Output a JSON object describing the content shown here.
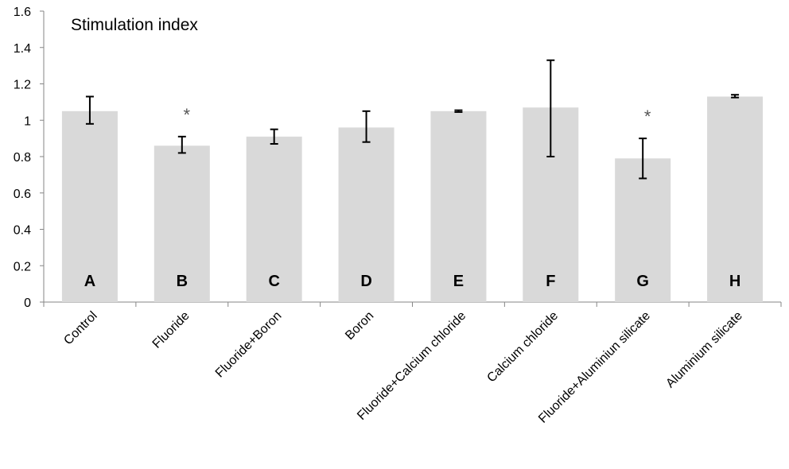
{
  "chart_data": {
    "type": "bar",
    "title": "Stimulation index",
    "xlabel": "",
    "ylabel": "",
    "ylim": [
      0,
      1.6
    ],
    "yticks": [
      "0",
      "0.2",
      "0.4",
      "0.6",
      "0.8",
      "1",
      "1.2",
      "1.4",
      "1.6"
    ],
    "grid": false,
    "legend": "none",
    "bar_color": "#d9d9d9",
    "categories": [
      "Control",
      "Fluoride",
      "Fluoride+Boron",
      "Boron",
      "Fluoride+Calcium chloride",
      "Calcium chloride",
      "Fluoride+Aluminiun silicate",
      "Aluminium silicate"
    ],
    "letters": [
      "A",
      "B",
      "C",
      "D",
      "E",
      "F",
      "G",
      "H"
    ],
    "values": [
      1.05,
      0.86,
      0.91,
      0.96,
      1.05,
      1.07,
      0.79,
      1.13
    ],
    "error_low": [
      0.98,
      0.82,
      0.87,
      0.88,
      1.045,
      0.8,
      0.68,
      1.125
    ],
    "error_high": [
      1.13,
      0.91,
      0.95,
      1.05,
      1.055,
      1.33,
      0.9,
      1.14
    ],
    "significance": [
      "",
      "*",
      "",
      "",
      "",
      "",
      "*",
      ""
    ]
  }
}
